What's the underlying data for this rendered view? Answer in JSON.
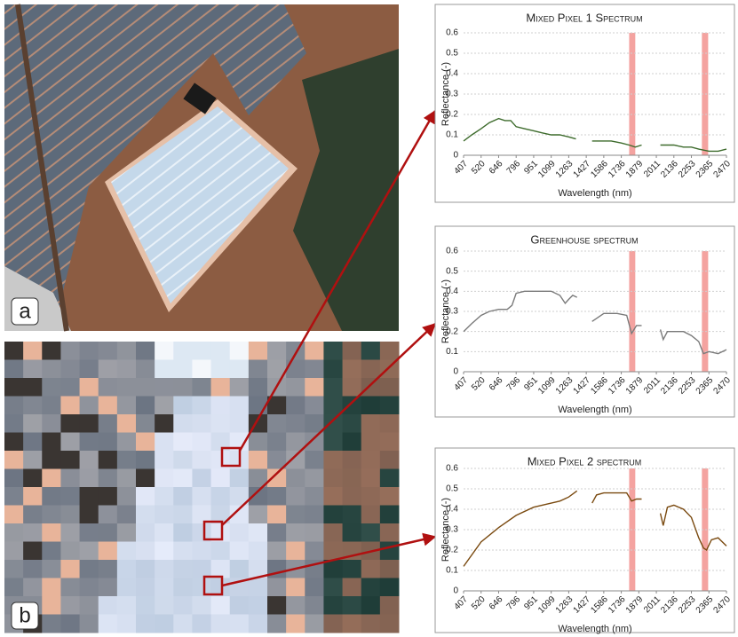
{
  "panel_labels": [
    "a",
    "b"
  ],
  "chart_data": [
    {
      "type": "line",
      "title": "Mixed Pixel 1 Spectrum",
      "xlabel": "Wavelength (nm)",
      "ylabel": "Reflectance (-)",
      "color": "#3d6b2c",
      "band_color": "#f4a3a0",
      "grid": true,
      "xlim": [
        407,
        2470
      ],
      "xticks": [
        407,
        520,
        646,
        796,
        951,
        1099,
        1263,
        1427,
        1586,
        1736,
        1879,
        2011,
        2136,
        2253,
        2365,
        2470
      ],
      "ylim": [
        0,
        0.6
      ],
      "yticks": [
        0,
        0.1,
        0.2,
        0.3,
        0.4,
        0.5,
        0.6
      ],
      "bands": [
        [
          1800,
          1850
        ],
        [
          2320,
          2360
        ]
      ],
      "x": [
        407,
        460,
        520,
        580,
        646,
        700,
        750,
        796,
        870,
        951,
        1020,
        1099,
        1180,
        1263,
        1330,
        1400,
        1480,
        1586,
        1650,
        1736,
        1800,
        1850,
        1900,
        1970,
        2040,
        2136,
        2200,
        2253,
        2300,
        2365,
        2420,
        2470
      ],
      "values": [
        0.07,
        0.1,
        0.13,
        0.16,
        0.18,
        0.17,
        0.17,
        0.14,
        0.13,
        0.12,
        0.11,
        0.1,
        0.1,
        0.09,
        0.08,
        null,
        0.07,
        0.07,
        0.07,
        0.06,
        0.05,
        0.04,
        0.05,
        null,
        0.05,
        0.05,
        0.04,
        0.04,
        0.03,
        0.02,
        0.02,
        0.03
      ]
    },
    {
      "type": "line",
      "title": "Greenhouse spectrum",
      "xlabel": "Wavelength (nm)",
      "ylabel": "Reflectance (-)",
      "color": "#7a7a7a",
      "band_color": "#f4a3a0",
      "grid": true,
      "xlim": [
        407,
        2470
      ],
      "xticks": [
        407,
        520,
        646,
        796,
        951,
        1099,
        1263,
        1427,
        1586,
        1736,
        1879,
        2011,
        2136,
        2253,
        2365,
        2470
      ],
      "ylim": [
        0,
        0.6
      ],
      "yticks": [
        0,
        0.1,
        0.2,
        0.3,
        0.4,
        0.5,
        0.6
      ],
      "bands": [
        [
          1800,
          1850
        ],
        [
          2320,
          2360
        ]
      ],
      "x": [
        407,
        460,
        520,
        580,
        646,
        720,
        760,
        796,
        870,
        951,
        1050,
        1099,
        1180,
        1230,
        1263,
        1300,
        1340,
        1400,
        1480,
        1586,
        1700,
        1780,
        1820,
        1860,
        1900,
        1970,
        2040,
        2060,
        2090,
        2136,
        2200,
        2253,
        2300,
        2330,
        2365,
        2420,
        2470
      ],
      "values": [
        0.2,
        0.24,
        0.28,
        0.3,
        0.31,
        0.31,
        0.33,
        0.39,
        0.4,
        0.4,
        0.4,
        0.4,
        0.38,
        0.34,
        0.36,
        0.38,
        0.37,
        null,
        0.25,
        0.29,
        0.29,
        0.28,
        0.19,
        0.23,
        0.23,
        null,
        0.21,
        0.16,
        0.2,
        0.2,
        0.2,
        0.18,
        0.15,
        0.09,
        0.1,
        0.09,
        0.11
      ]
    },
    {
      "type": "line",
      "title": "Mixed Pixel 2 spectrum",
      "xlabel": "Wavelength (nm)",
      "ylabel": "Reflectance (-)",
      "color": "#7a4a10",
      "band_color": "#f4a3a0",
      "grid": true,
      "xlim": [
        407,
        2470
      ],
      "xticks": [
        407,
        520,
        646,
        796,
        951,
        1099,
        1263,
        1427,
        1586,
        1736,
        1879,
        2011,
        2136,
        2253,
        2365,
        2470
      ],
      "ylim": [
        0,
        0.6
      ],
      "yticks": [
        0,
        0.1,
        0.2,
        0.3,
        0.4,
        0.5,
        0.6
      ],
      "bands": [
        [
          1800,
          1850
        ],
        [
          2320,
          2360
        ]
      ],
      "x": [
        407,
        520,
        646,
        796,
        951,
        1099,
        1180,
        1263,
        1340,
        1400,
        1480,
        1520,
        1586,
        1700,
        1780,
        1820,
        1860,
        1900,
        1970,
        2040,
        2060,
        2090,
        2136,
        2200,
        2253,
        2300,
        2330,
        2350,
        2380,
        2420,
        2470
      ],
      "values": [
        0.12,
        0.24,
        0.31,
        0.37,
        0.41,
        0.43,
        0.44,
        0.46,
        0.49,
        null,
        0.43,
        0.47,
        0.48,
        0.48,
        0.48,
        0.44,
        0.45,
        0.45,
        null,
        0.38,
        0.32,
        0.41,
        0.42,
        0.4,
        0.36,
        0.26,
        0.21,
        0.2,
        0.25,
        0.26,
        0.22
      ]
    }
  ]
}
